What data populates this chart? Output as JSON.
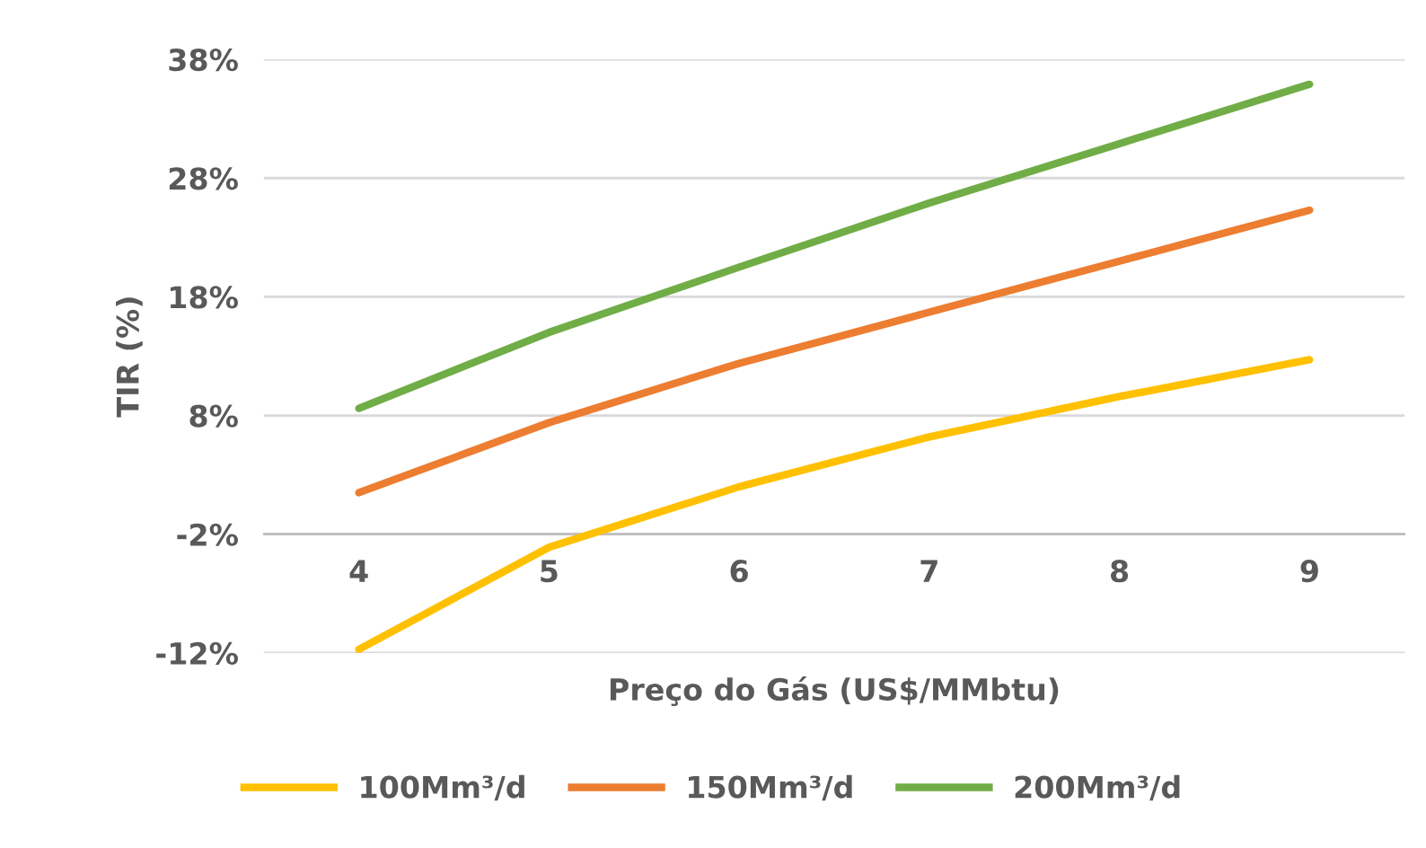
{
  "chart_data": {
    "type": "line",
    "xlabel": "Preço do Gás (US$/MMbtu)",
    "ylabel": "TIR (%)",
    "categories": [
      "4",
      "5",
      "6",
      "7",
      "8",
      "9"
    ],
    "series": [
      {
        "name": "100Mm³/d",
        "color": "#ffc000",
        "values": [
          -11.7,
          -3.1,
          2.0,
          6.2,
          9.6,
          12.7
        ]
      },
      {
        "name": "150Mm³/d",
        "color": "#ed7d31",
        "values": [
          1.5,
          7.4,
          12.4,
          16.7,
          21.0,
          25.3
        ]
      },
      {
        "name": "200Mm³/d",
        "color": "#70ad47",
        "values": [
          8.6,
          15.0,
          20.5,
          25.9,
          30.9,
          35.9
        ]
      }
    ],
    "ylim": [
      -12,
      38
    ],
    "yticks": [
      {
        "value": -12,
        "label": "-12%"
      },
      {
        "value": -2,
        "label": "-2%"
      },
      {
        "value": 8,
        "label": "8%"
      },
      {
        "value": 18,
        "label": "18%"
      },
      {
        "value": 28,
        "label": "28%"
      },
      {
        "value": 38,
        "label": "38%"
      }
    ],
    "ref_lines": [
      {
        "axis": "y",
        "value": -2,
        "color": "#bfbfbf"
      }
    ],
    "grid": "y",
    "legend": "bottom",
    "marker": "none",
    "line_style": "solid"
  }
}
